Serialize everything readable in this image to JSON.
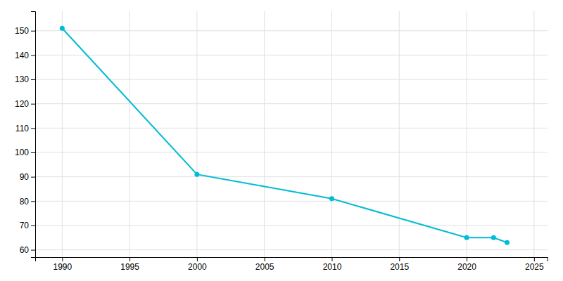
{
  "chart_data": {
    "type": "line",
    "x": [
      1990,
      2000,
      2010,
      2020,
      2022,
      2023
    ],
    "values": [
      151,
      91,
      81,
      65,
      65,
      63
    ],
    "color": "#00bcd4",
    "marker": "circle",
    "xlim": [
      1988,
      2026
    ],
    "ylim": [
      57,
      158
    ],
    "xticks": [
      1990,
      1995,
      2000,
      2005,
      2010,
      2015,
      2020,
      2025
    ],
    "yticks": [
      60,
      70,
      80,
      90,
      100,
      110,
      120,
      130,
      140,
      150
    ],
    "grid": true
  }
}
